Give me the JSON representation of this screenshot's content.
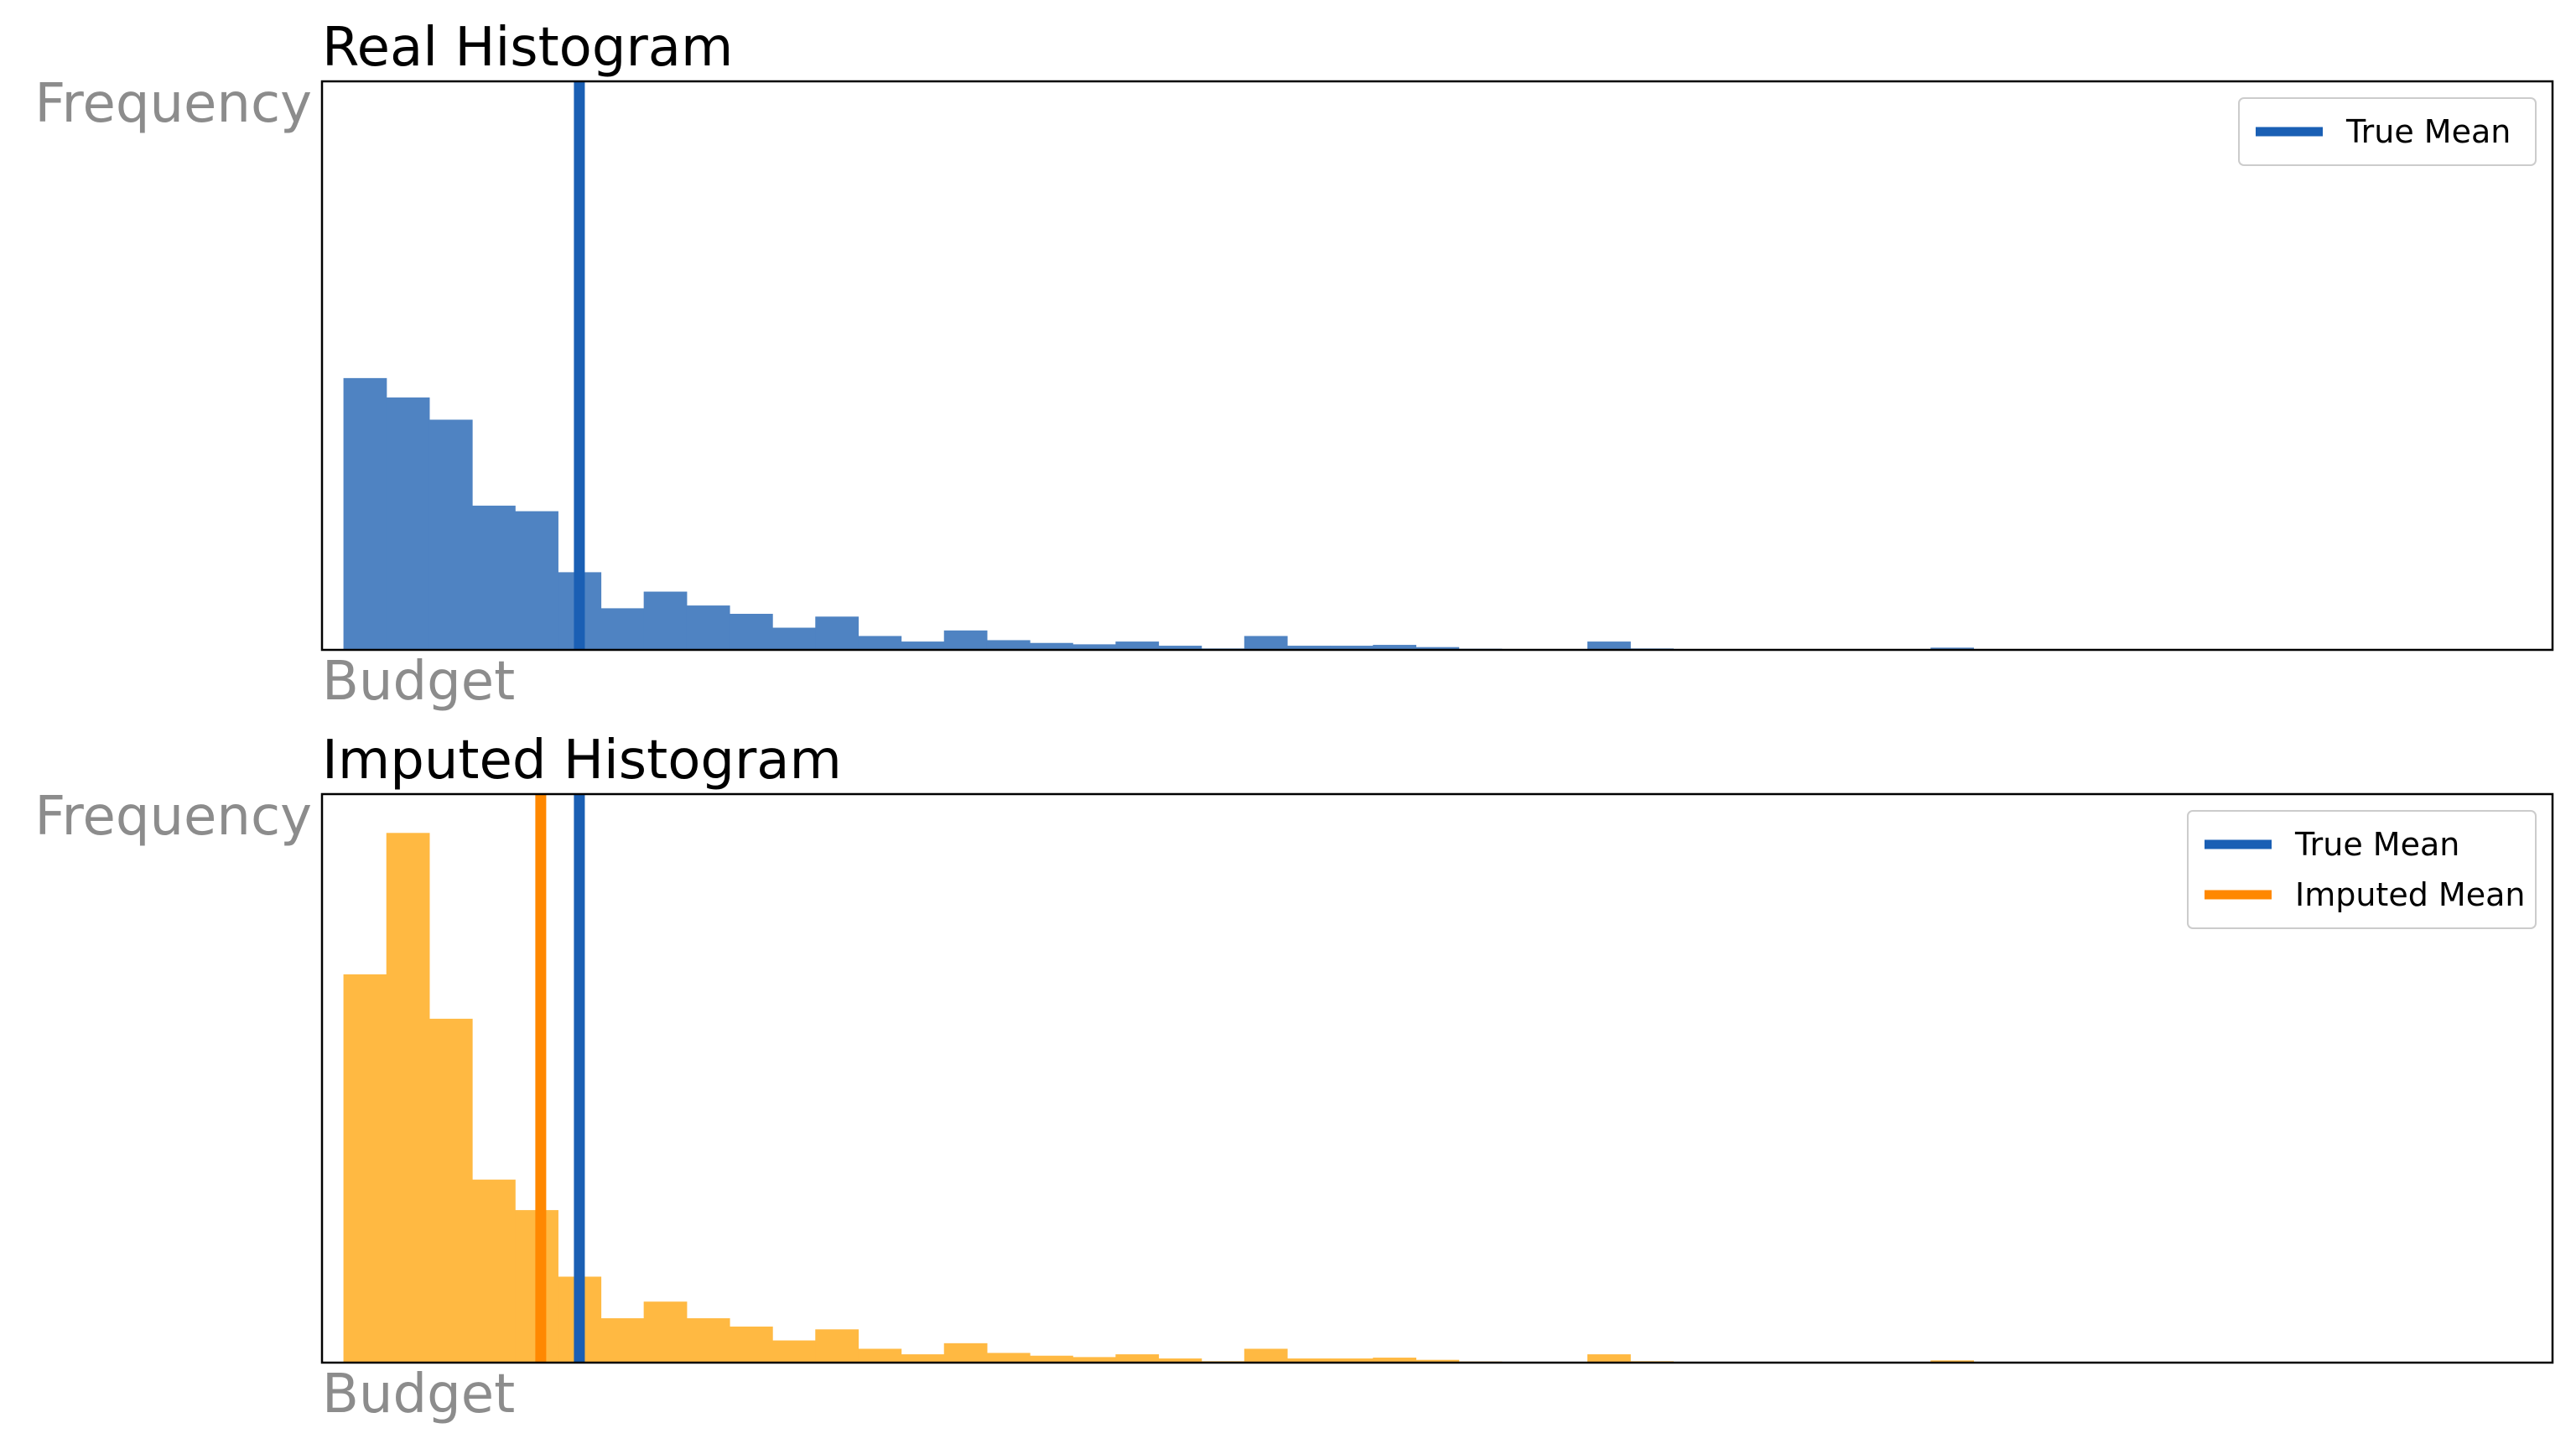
{
  "chart_data": [
    {
      "type": "bar",
      "title": "Real Histogram",
      "xlabel": "Budget",
      "ylabel": "Frequency",
      "xlim": [
        -1,
        51
      ],
      "ylim": [
        0,
        205
      ],
      "bin_count": 52,
      "values": [
        98,
        91,
        83,
        52,
        50,
        28,
        15,
        21,
        16,
        13,
        8,
        12,
        5,
        3,
        7,
        3.5,
        2.5,
        2,
        3,
        1.5,
        0.5,
        5,
        1.5,
        1.5,
        1.8,
        1,
        0.4,
        0.2,
        0,
        3,
        0.5,
        0.3,
        0.3,
        0.2,
        0,
        0,
        0,
        0.8,
        0,
        0,
        0,
        0,
        0,
        0,
        0,
        0,
        0,
        0,
        0,
        0,
        0,
        0
      ],
      "bar_color": "#4f83c2",
      "reference_lines": [
        {
          "label": "True Mean",
          "x": 5,
          "color": "#1a5fb4"
        }
      ],
      "grid": false,
      "legend_position": "top-right"
    },
    {
      "type": "bar",
      "title": "Imputed Histogram",
      "xlabel": "Budget",
      "ylabel": "Frequency",
      "xlim": [
        -1,
        51
      ],
      "ylim": [
        0,
        205
      ],
      "bin_count": 52,
      "values": [
        140,
        191,
        124,
        66,
        55,
        31,
        16,
        22,
        16,
        13,
        8,
        12,
        5,
        3,
        7,
        3.5,
        2.5,
        2,
        3,
        1.5,
        0.5,
        5,
        1.5,
        1.5,
        1.8,
        1,
        0.4,
        0.2,
        0,
        3,
        0.5,
        0.3,
        0.3,
        0.2,
        0,
        0,
        0,
        0.8,
        0,
        0,
        0,
        0,
        0,
        0,
        0,
        0,
        0,
        0,
        0,
        0,
        0,
        0
      ],
      "bar_color": "#ffb942",
      "reference_lines": [
        {
          "label": "True Mean",
          "x": 5,
          "color": "#1a5fb4"
        },
        {
          "label": "Imputed Mean",
          "x": 4.1,
          "color": "#ff8800"
        }
      ],
      "grid": false,
      "legend_position": "top-right"
    }
  ]
}
